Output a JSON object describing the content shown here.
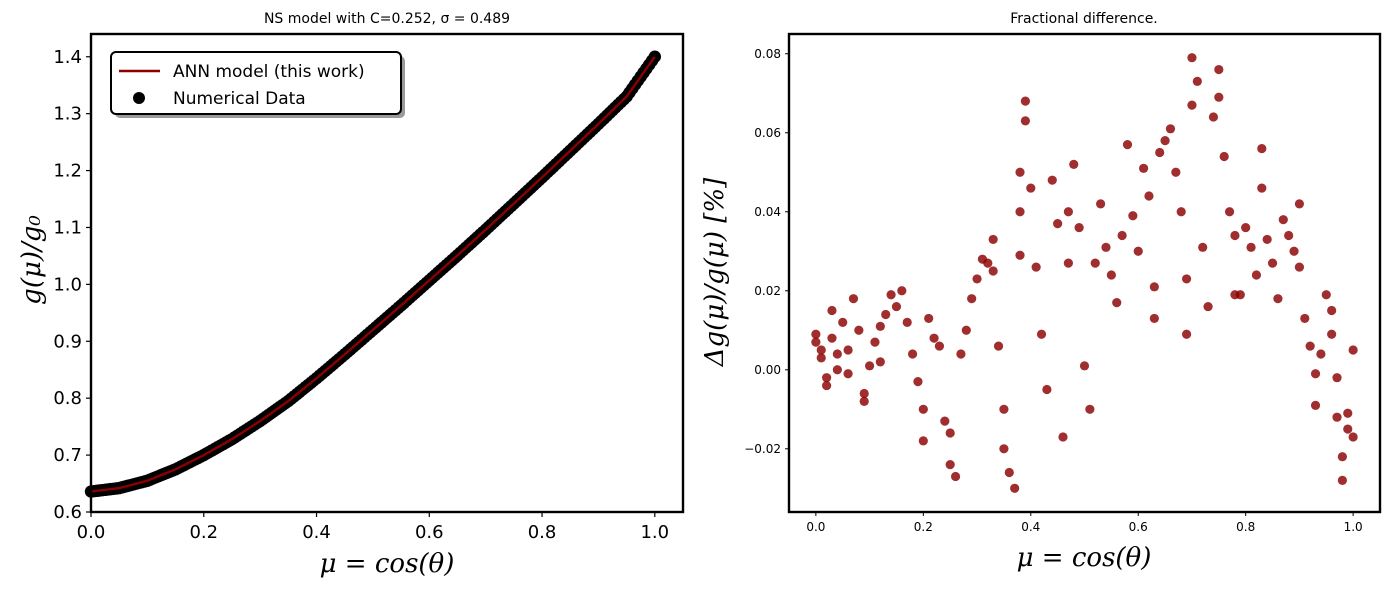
{
  "chart_data": [
    {
      "type": "line+scatter",
      "title": "NS model with C=0.252, σ = 0.489",
      "xlabel": "μ = cos(θ)",
      "ylabel": "g(μ)/g₀",
      "xlim": [
        0.0,
        1.05
      ],
      "ylim": [
        0.6,
        1.44
      ],
      "xticks": [
        "0.0",
        "0.2",
        "0.4",
        "0.6",
        "0.8",
        "1.0"
      ],
      "yticks": [
        "0.6",
        "0.7",
        "0.8",
        "0.9",
        "1.0",
        "1.1",
        "1.2",
        "1.3",
        "1.4"
      ],
      "legend": {
        "placement": "top-left",
        "entries": [
          "ANN model (this work)",
          "Numerical Data"
        ]
      },
      "series": [
        {
          "name": "ANN model (this work)",
          "kind": "line",
          "color": "#8b0000",
          "x": [
            0.0,
            0.05,
            0.1,
            0.15,
            0.2,
            0.25,
            0.3,
            0.35,
            0.4,
            0.45,
            0.5,
            0.55,
            0.6,
            0.65,
            0.7,
            0.75,
            0.8,
            0.85,
            0.9,
            0.95,
            1.0
          ],
          "y": [
            0.636,
            0.642,
            0.655,
            0.675,
            0.7,
            0.728,
            0.76,
            0.795,
            0.835,
            0.877,
            0.92,
            0.963,
            1.007,
            1.051,
            1.096,
            1.142,
            1.188,
            1.235,
            1.282,
            1.33,
            1.4
          ]
        },
        {
          "name": "Numerical Data",
          "kind": "scatter",
          "color": "#000000",
          "x": [
            0.0,
            0.05,
            0.1,
            0.15,
            0.2,
            0.25,
            0.3,
            0.35,
            0.4,
            0.45,
            0.5,
            0.55,
            0.6,
            0.65,
            0.7,
            0.75,
            0.8,
            0.85,
            0.9,
            0.95,
            1.0
          ],
          "y": [
            0.636,
            0.642,
            0.655,
            0.675,
            0.7,
            0.728,
            0.76,
            0.795,
            0.835,
            0.877,
            0.92,
            0.963,
            1.007,
            1.051,
            1.096,
            1.142,
            1.188,
            1.235,
            1.282,
            1.33,
            1.4
          ]
        }
      ]
    },
    {
      "type": "scatter",
      "title": "Fractional difference.",
      "xlabel": "μ = cos(θ)",
      "ylabel": "Δg(μ)/g(μ)  [%]",
      "xlim": [
        -0.05,
        1.05
      ],
      "ylim": [
        -0.036,
        0.085
      ],
      "xticks": [
        "0.0",
        "0.2",
        "0.4",
        "0.6",
        "0.8",
        "1.0"
      ],
      "yticks": [
        "−0.02",
        "0.00",
        "0.02",
        "0.04",
        "0.06",
        "0.08"
      ],
      "color": "#8b0000",
      "series": [
        {
          "points": [
            [
              0.0,
              0.009
            ],
            [
              0.0,
              0.007
            ],
            [
              0.01,
              0.003
            ],
            [
              0.01,
              0.005
            ],
            [
              0.02,
              -0.004
            ],
            [
              0.02,
              -0.002
            ],
            [
              0.03,
              0.015
            ],
            [
              0.03,
              0.008
            ],
            [
              0.04,
              0.0
            ],
            [
              0.04,
              0.004
            ],
            [
              0.05,
              0.012
            ],
            [
              0.06,
              0.005
            ],
            [
              0.06,
              -0.001
            ],
            [
              0.07,
              0.018
            ],
            [
              0.08,
              0.01
            ],
            [
              0.09,
              -0.006
            ],
            [
              0.09,
              -0.008
            ],
            [
              0.1,
              0.001
            ],
            [
              0.11,
              0.007
            ],
            [
              0.12,
              0.011
            ],
            [
              0.12,
              0.002
            ],
            [
              0.13,
              0.014
            ],
            [
              0.14,
              0.019
            ],
            [
              0.15,
              0.016
            ],
            [
              0.16,
              0.02
            ],
            [
              0.17,
              0.012
            ],
            [
              0.18,
              0.004
            ],
            [
              0.19,
              -0.003
            ],
            [
              0.2,
              -0.018
            ],
            [
              0.2,
              -0.01
            ],
            [
              0.21,
              0.013
            ],
            [
              0.22,
              0.008
            ],
            [
              0.23,
              0.006
            ],
            [
              0.24,
              -0.013
            ],
            [
              0.25,
              -0.016
            ],
            [
              0.25,
              -0.024
            ],
            [
              0.26,
              -0.027
            ],
            [
              0.27,
              0.004
            ],
            [
              0.28,
              0.01
            ],
            [
              0.29,
              0.018
            ],
            [
              0.3,
              0.023
            ],
            [
              0.31,
              0.028
            ],
            [
              0.32,
              0.027
            ],
            [
              0.33,
              0.033
            ],
            [
              0.33,
              0.025
            ],
            [
              0.34,
              0.006
            ],
            [
              0.35,
              -0.01
            ],
            [
              0.35,
              -0.02
            ],
            [
              0.36,
              -0.026
            ],
            [
              0.37,
              -0.03
            ],
            [
              0.38,
              0.029
            ],
            [
              0.38,
              0.04
            ],
            [
              0.38,
              0.05
            ],
            [
              0.39,
              0.068
            ],
            [
              0.39,
              0.063
            ],
            [
              0.4,
              0.046
            ],
            [
              0.41,
              0.026
            ],
            [
              0.42,
              0.009
            ],
            [
              0.43,
              -0.005
            ],
            [
              0.44,
              0.048
            ],
            [
              0.45,
              0.037
            ],
            [
              0.46,
              -0.017
            ],
            [
              0.47,
              0.04
            ],
            [
              0.47,
              0.027
            ],
            [
              0.48,
              0.052
            ],
            [
              0.49,
              0.036
            ],
            [
              0.5,
              0.001
            ],
            [
              0.51,
              -0.01
            ],
            [
              0.52,
              0.027
            ],
            [
              0.53,
              0.042
            ],
            [
              0.54,
              0.031
            ],
            [
              0.55,
              0.024
            ],
            [
              0.56,
              0.017
            ],
            [
              0.57,
              0.034
            ],
            [
              0.58,
              0.057
            ],
            [
              0.59,
              0.039
            ],
            [
              0.6,
              0.03
            ],
            [
              0.61,
              0.051
            ],
            [
              0.62,
              0.044
            ],
            [
              0.63,
              0.021
            ],
            [
              0.63,
              0.013
            ],
            [
              0.64,
              0.055
            ],
            [
              0.65,
              0.058
            ],
            [
              0.66,
              0.061
            ],
            [
              0.67,
              0.05
            ],
            [
              0.68,
              0.04
            ],
            [
              0.69,
              0.023
            ],
            [
              0.69,
              0.009
            ],
            [
              0.7,
              0.067
            ],
            [
              0.7,
              0.079
            ],
            [
              0.71,
              0.073
            ],
            [
              0.72,
              0.031
            ],
            [
              0.73,
              0.016
            ],
            [
              0.74,
              0.064
            ],
            [
              0.75,
              0.076
            ],
            [
              0.75,
              0.069
            ],
            [
              0.76,
              0.054
            ],
            [
              0.77,
              0.04
            ],
            [
              0.78,
              0.034
            ],
            [
              0.78,
              0.019
            ],
            [
              0.79,
              0.019
            ],
            [
              0.8,
              0.036
            ],
            [
              0.81,
              0.031
            ],
            [
              0.82,
              0.024
            ],
            [
              0.83,
              0.056
            ],
            [
              0.83,
              0.046
            ],
            [
              0.84,
              0.033
            ],
            [
              0.85,
              0.027
            ],
            [
              0.86,
              0.018
            ],
            [
              0.87,
              0.038
            ],
            [
              0.88,
              0.034
            ],
            [
              0.89,
              0.03
            ],
            [
              0.9,
              0.042
            ],
            [
              0.9,
              0.026
            ],
            [
              0.91,
              0.013
            ],
            [
              0.92,
              0.006
            ],
            [
              0.93,
              -0.001
            ],
            [
              0.93,
              -0.009
            ],
            [
              0.94,
              0.004
            ],
            [
              0.95,
              0.019
            ],
            [
              0.96,
              0.015
            ],
            [
              0.96,
              0.009
            ],
            [
              0.97,
              -0.002
            ],
            [
              0.97,
              -0.012
            ],
            [
              0.98,
              -0.022
            ],
            [
              0.98,
              -0.028
            ],
            [
              0.99,
              -0.015
            ],
            [
              0.99,
              -0.011
            ],
            [
              1.0,
              -0.017
            ],
            [
              1.0,
              0.005
            ]
          ]
        }
      ]
    }
  ]
}
